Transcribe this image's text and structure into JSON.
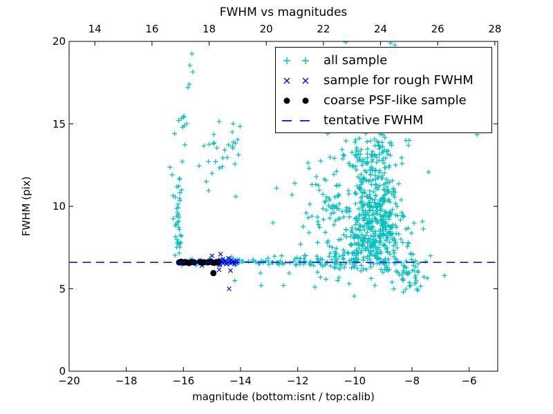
{
  "figure": {
    "background": "#ffffff"
  },
  "chart_data": {
    "type": "scatter",
    "title": "FWHM vs magnitudes",
    "xlabel": "magnitude (bottom:isnt / top:calib)",
    "ylabel": "FWHM (pix)",
    "legend_position": "top-right",
    "grid": false,
    "seed": 42,
    "axes": {
      "x_bottom": {
        "min": -20,
        "max": -5,
        "ticks": [
          -20,
          -18,
          -16,
          -14,
          -12,
          -10,
          -8,
          -6
        ],
        "labels": [
          "−20",
          "−18",
          "−16",
          "−14",
          "−12",
          "−10",
          "−8",
          "−6"
        ]
      },
      "x_top": {
        "offset": 33.1,
        "ticks": [
          14,
          16,
          18,
          20,
          22,
          24,
          26,
          28
        ],
        "labels": [
          "14",
          "16",
          "18",
          "20",
          "22",
          "24",
          "26",
          "28"
        ]
      },
      "y": {
        "min": 0,
        "max": 20,
        "ticks": [
          0,
          5,
          10,
          15,
          20
        ],
        "labels": [
          "0",
          "5",
          "10",
          "15",
          "20"
        ]
      }
    },
    "colors": {
      "cyan": "#00bfbf",
      "blue": "#0000ff",
      "black": "#000000",
      "frame": "#000000"
    },
    "series": [
      {
        "name": "all sample",
        "marker": "plus",
        "color": "#00bfbf",
        "clusters": [
          {
            "n": 26,
            "xd": [
              "n",
              -16.18,
              0.07
            ],
            "yd": [
              "u",
              6.9,
              9.9
            ]
          },
          {
            "n": 9,
            "xd": [
              "n",
              -16.2,
              0.07
            ],
            "yd": [
              "u",
              9.9,
              11.2
            ]
          },
          {
            "n": 10,
            "xd": [
              "n",
              -16.12,
              0.08
            ],
            "yd": [
              "u",
              11.2,
              16.0
            ]
          },
          {
            "n": 16,
            "xd": [
              "n",
              -14.6,
              0.4
            ],
            "yd": [
              "n",
              13.2,
              1.1
            ]
          },
          {
            "n": 55,
            "xd": [
              "u",
              -16.05,
              -13.2
            ],
            "yd": [
              "n",
              6.62,
              0.1
            ]
          },
          {
            "n": 45,
            "xd": [
              "u",
              -13.2,
              -10.9
            ],
            "yd": [
              "n",
              6.65,
              0.15
            ]
          },
          {
            "n": 45,
            "xd": [
              "u",
              -10.9,
              -9.7
            ],
            "yd": [
              "n",
              6.75,
              0.4
            ]
          },
          {
            "n": 300,
            "xd": [
              "n",
              -9.35,
              0.5
            ],
            "yd": [
              "n",
              8.3,
              1.1
            ]
          },
          {
            "n": 150,
            "xd": [
              "n",
              -9.25,
              0.45
            ],
            "yd": [
              "n",
              11.2,
              1.2
            ]
          },
          {
            "n": 60,
            "xd": [
              "n",
              -9.4,
              0.45
            ],
            "yd": [
              "n",
              13.3,
              0.6
            ]
          },
          {
            "n": 70,
            "xd": [
              "n",
              -10.8,
              0.45
            ],
            "yd": [
              "n",
              9.8,
              1.7
            ]
          },
          {
            "n": 50,
            "xd": [
              "n",
              -8.1,
              0.3
            ],
            "yd": [
              "n",
              6.1,
              0.55
            ]
          },
          {
            "n": 45,
            "xd": [
              "n",
              -9.4,
              0.95
            ],
            "yd": [
              "n",
              9.3,
              2.3
            ]
          }
        ],
        "points": [
          [
            -10.32,
            19.95
          ],
          [
            -8.75,
            19.9
          ],
          [
            -8.6,
            19.78
          ],
          [
            -15.7,
            19.25
          ],
          [
            -15.77,
            18.55
          ],
          [
            -15.67,
            18.15
          ],
          [
            -15.79,
            17.4
          ],
          [
            -15.84,
            17.2
          ],
          [
            -15.98,
            15.47
          ],
          [
            -15.89,
            15.01
          ],
          [
            -16.0,
            15.4
          ],
          [
            -14.26,
            15.01
          ],
          [
            -14.02,
            14.84
          ],
          [
            -14.29,
            14.51
          ],
          [
            -14.1,
            14.05
          ],
          [
            -14.18,
            13.82
          ],
          [
            -14.95,
            13.8
          ],
          [
            -15.1,
            13.76
          ],
          [
            -15.28,
            13.67
          ],
          [
            -14.28,
            13.63
          ],
          [
            -14.07,
            13.12
          ],
          [
            -16.47,
            12.37
          ],
          [
            -16.39,
            11.91
          ],
          [
            -15.45,
            12.45
          ],
          [
            -15.0,
            12.0
          ],
          [
            -15.2,
            11.5
          ],
          [
            -15.12,
            10.95
          ],
          [
            -12.74,
            11.1
          ],
          [
            -12.1,
            11.4
          ],
          [
            -12.2,
            10.7
          ],
          [
            -12.86,
            9.0
          ],
          [
            -11.6,
            12.3
          ],
          [
            -11.7,
            9.6
          ],
          [
            -11.5,
            9.4
          ],
          [
            -11.1,
            9.2
          ],
          [
            -11.6,
            8.4
          ],
          [
            -11.3,
            7.8
          ],
          [
            -11.9,
            7.7
          ],
          [
            -8.1,
            14.0
          ],
          [
            -5.72,
            14.35
          ],
          [
            -7.35,
            7.0
          ],
          [
            -6.86,
            5.8
          ],
          [
            -14.2,
            5.5
          ],
          [
            -13.3,
            5.95
          ],
          [
            -13.28,
            5.2
          ],
          [
            -12.5,
            5.2
          ],
          [
            -12.3,
            5.95
          ],
          [
            -11.4,
            5.1
          ],
          [
            -11.2,
            5.7
          ],
          [
            -10.6,
            5.5
          ],
          [
            -10.2,
            5.3
          ],
          [
            -9.3,
            5.2
          ],
          [
            -8.7,
            5.4
          ],
          [
            -8.3,
            4.8
          ],
          [
            -7.8,
            4.9
          ],
          [
            -7.7,
            5.15
          ],
          [
            -7.9,
            5.3
          ]
        ]
      },
      {
        "name": "sample for rough FWHM",
        "marker": "x",
        "color": "#0000ff",
        "points": [
          [
            -15.15,
            6.6
          ],
          [
            -15.05,
            6.7
          ],
          [
            -14.95,
            6.55
          ],
          [
            -14.9,
            6.65
          ],
          [
            -14.85,
            6.5
          ],
          [
            -14.8,
            6.7
          ],
          [
            -14.75,
            6.6
          ],
          [
            -14.7,
            6.75
          ],
          [
            -14.72,
            6.45
          ],
          [
            -14.65,
            6.6
          ],
          [
            -14.6,
            6.55
          ],
          [
            -14.62,
            6.8
          ],
          [
            -14.55,
            6.65
          ],
          [
            -14.5,
            6.5
          ],
          [
            -14.52,
            6.7
          ],
          [
            -14.45,
            6.6
          ],
          [
            -14.4,
            6.65
          ],
          [
            -14.42,
            6.85
          ],
          [
            -14.35,
            6.55
          ],
          [
            -14.3,
            6.6
          ],
          [
            -14.32,
            6.75
          ],
          [
            -14.25,
            6.65
          ],
          [
            -14.2,
            6.5
          ],
          [
            -14.15,
            6.6
          ],
          [
            -14.12,
            6.68
          ],
          [
            -14.7,
            7.1
          ],
          [
            -15.0,
            7.0
          ],
          [
            -14.35,
            6.1
          ],
          [
            -14.75,
            6.15
          ],
          [
            -15.35,
            6.4
          ],
          [
            -14.4,
            5.0
          ]
        ]
      },
      {
        "name": "coarse PSF-like sample",
        "marker": "dot",
        "color": "#000000",
        "points": [
          [
            -16.15,
            6.6
          ],
          [
            -16.08,
            6.64
          ],
          [
            -16.0,
            6.58
          ],
          [
            -15.95,
            6.62
          ],
          [
            -15.88,
            6.6
          ],
          [
            -15.8,
            6.56
          ],
          [
            -15.72,
            6.62
          ],
          [
            -15.62,
            6.6
          ],
          [
            -15.42,
            6.63
          ],
          [
            -15.35,
            6.58
          ],
          [
            -15.28,
            6.61
          ],
          [
            -15.15,
            6.6
          ],
          [
            -15.05,
            6.63
          ],
          [
            -14.95,
            6.58
          ],
          [
            -14.85,
            6.6
          ],
          [
            -14.78,
            6.62
          ],
          [
            -14.95,
            5.95
          ]
        ]
      },
      {
        "name": "tentative FWHM",
        "marker": "dashed-line",
        "color": "#0000ff",
        "y": 6.6
      }
    ]
  }
}
